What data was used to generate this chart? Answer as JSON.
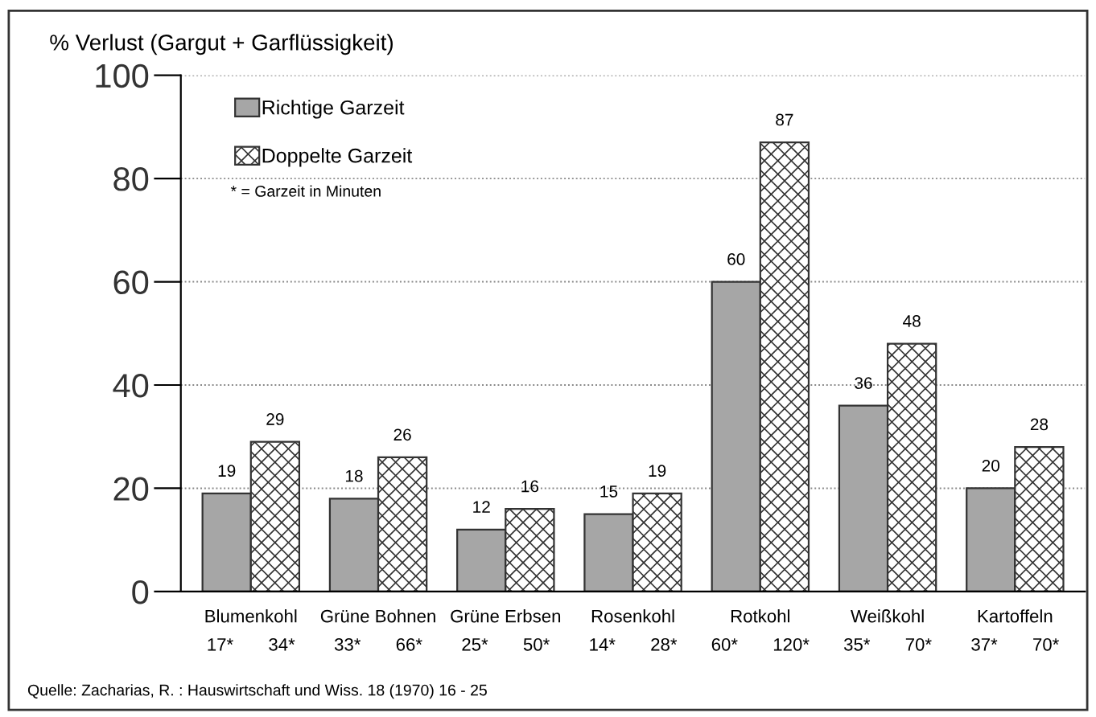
{
  "chart_data": {
    "type": "bar",
    "ylabel": "% Verlust (Gargut + Garflüssigkeit)",
    "categories": [
      "Blumenkohl\n17*       34*",
      "Grüne Bohnen\n33*       66*",
      "Grüne Erbsen\n25*       50*",
      "Rosenkohl\n14*       28*",
      "Rotkohl\n60*       120*",
      "Weißkohl\n35*       70*",
      "Kartoffeln\n37*       70*"
    ],
    "series": [
      {
        "name": "Richtige Garzeit",
        "color": "#a6a6a6",
        "values": [
          19,
          18,
          12,
          15,
          60,
          36,
          20
        ]
      },
      {
        "name": "Doppelte Garzeit",
        "color": "#333333",
        "values": [
          29,
          26,
          16,
          19,
          87,
          48,
          28
        ]
      }
    ],
    "data_labels": true,
    "ylim": [
      0,
      100
    ],
    "yticks": [
      0,
      20,
      40,
      60,
      80,
      100
    ],
    "grid": "y",
    "legend": "top left",
    "annotations": [
      "* = Garzeit in Minuten",
      "Quelle: Zacharias, R. : Hauswirtschaft und Wiss. 18 (1970) 16 - 25"
    ]
  }
}
